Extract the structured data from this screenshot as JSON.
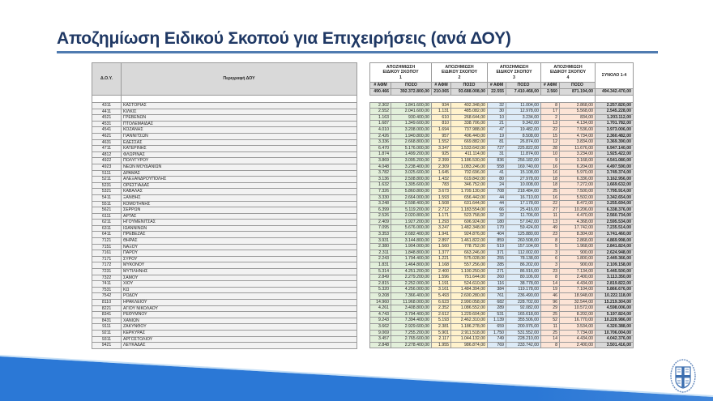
{
  "title": "Αποζημίωση Ειδικού Σκοπού για Επιχειρήσεις (ανά ΔΟΥ)",
  "left_headers": {
    "code": "Δ.Ο.Υ.",
    "name": "Περιγραφή ΔΟΥ"
  },
  "groups": [
    {
      "line1": "ΑΠΟΖΗΜΙΩΣΗ",
      "line2": "ΕΙΔΙΚΟΥ ΣΚΟΠΟΥ",
      "num": "1"
    },
    {
      "line1": "ΑΠΟΖΗΜΙΩΣΗ",
      "line2": "ΕΙΔΙΚΟΥ ΣΚΟΠΟΥ",
      "num": "2"
    },
    {
      "line1": "ΑΠΟΖΗΜΙΩΣΗ",
      "line2": "ΕΙΔΙΚΟΥ ΣΚΟΠΟΥ",
      "num": "3"
    },
    {
      "line1": "ΑΠΟΖΗΜΙΩΣΗ",
      "line2": "ΕΙΔΙΚΟΥ ΣΚΟΠΟΥ",
      "num": "4"
    }
  ],
  "sum_header": "ΣΥΝΟΛΟ 1-4",
  "sub_headers": {
    "afm": "# ΑΦΜ",
    "poso": "ΠΟΣΟ"
  },
  "totals": {
    "afm1": "490.466",
    "poso1": "392.372.800,00",
    "afm2": "210.065",
    "poso2": "93.688.008,00",
    "afm3": "22.555",
    "poso3": "7.410.468,00",
    "afm4": "2.560",
    "poso4": "871.194,00",
    "sum": "494.342.470,00"
  },
  "rows": [
    {
      "code": "4311",
      "name": "ΚΑΣΤΟΡΙΑΣ",
      "a1": "2.302",
      "p1": "1.841.600,00",
      "a2": "934",
      "p2": "402.348,00",
      "a3": "32",
      "p3": "11.004,00",
      "a4": "8",
      "p4": "2.868,00",
      "sum": "2.257.820,00"
    },
    {
      "code": "4411",
      "name": "ΚΙΛΚΙΣ",
      "a1": "2.552",
      "p1": "2.041.600,00",
      "a2": "1.131",
      "p2": "485.082,00",
      "a3": "30",
      "p3": "12.978,00",
      "a4": "17",
      "p4": "5.568,00",
      "sum": "2.545.228,00"
    },
    {
      "code": "4521",
      "name": "ΓΡΕΒΕΝΩΝ",
      "a1": "1.163",
      "p1": "930.400,00",
      "a2": "610",
      "p2": "268.644,00",
      "a3": "10",
      "p3": "3.234,00",
      "a4": "2",
      "p4": "834,00",
      "sum": "1.203.112,00"
    },
    {
      "code": "4531",
      "name": "ΠΤΟΛΕΜΑΙΔΑΣ",
      "a1": "1.687",
      "p1": "1.349.600,00",
      "a2": "810",
      "p2": "338.706,00",
      "a3": "21",
      "p3": "9.342,00",
      "a4": "13",
      "p4": "4.134,00",
      "sum": "1.701.782,00"
    },
    {
      "code": "4541",
      "name": "ΚΟΖΑΝΗΣ",
      "a1": "4.010",
      "p1": "3.208.000,00",
      "a2": "1.694",
      "p2": "737.988,00",
      "a3": "47",
      "p3": "19.482,00",
      "a4": "22",
      "p4": "7.536,00",
      "sum": "3.973.006,00"
    },
    {
      "code": "4621",
      "name": "ΓΙΑΝΝΙΤΣΩΝ",
      "a1": "2.426",
      "p1": "1.940.800,00",
      "a2": "957",
      "p2": "406.440,00",
      "a3": "19",
      "p3": "8.508,00",
      "a4": "15",
      "p4": "4.734,00",
      "sum": "2.360.482,00"
    },
    {
      "code": "4631",
      "name": "ΕΔΕΣΣΑΣ",
      "a1": "3.336",
      "p1": "2.668.800,00",
      "a2": "1.552",
      "p2": "669.882,00",
      "a3": "81",
      "p3": "26.874,00",
      "a4": "12",
      "p4": "3.834,00",
      "sum": "3.369.390,00"
    },
    {
      "code": "4711",
      "name": "ΚΑΤΕΡΙΝΗΣ",
      "a1": "6.470",
      "p1": "5.176.000,00",
      "a2": "3.347",
      "p2": "1.533.642,00",
      "a3": "727",
      "p3": "225.822,00",
      "a4": "28",
      "p4": "11.676,00",
      "sum": "6.947.140,00"
    },
    {
      "code": "4812",
      "name": "ΦΛΩΡΙΝΑΣ",
      "a1": "1.874",
      "p1": "1.499.200,00",
      "a2": "925",
      "p2": "411.114,00",
      "a3": "31",
      "p3": "11.874,00",
      "a4": "10",
      "p4": "3.234,00",
      "sum": "1.925.422,00"
    },
    {
      "code": "4922",
      "name": "ΠΟΛΥΓΥΡΟΥ",
      "a1": "3.869",
      "p1": "3.095.200,00",
      "a2": "2.399",
      "p2": "1.186.530,00",
      "a3": "836",
      "p3": "256.182,00",
      "a4": "9",
      "p4": "3.168,00",
      "sum": "4.541.080,00"
    },
    {
      "code": "4923",
      "name": "ΝΕΩΝ ΜΟΥΔΑΝΙΩΝ",
      "a1": "4.048",
      "p1": "3.238.400,00",
      "a2": "2.309",
      "p2": "1.083.246,00",
      "a3": "558",
      "p3": "169.740,00",
      "a4": "16",
      "p4": "6.204,00",
      "sum": "4.497.590,00"
    },
    {
      "code": "5111",
      "name": "ΔΡΑΜΑΣ",
      "a1": "3.782",
      "p1": "3.025.600,00",
      "a2": "1.645",
      "p2": "702.696,00",
      "a3": "41",
      "p3": "15.108,00",
      "a4": "16",
      "p4": "5.970,00",
      "sum": "3.749.374,00"
    },
    {
      "code": "5211",
      "name": "ΑΛΕΞΑΝΔΡΟΥΠΟΛΗΣ",
      "a1": "3.136",
      "p1": "2.508.800,00",
      "a2": "1.432",
      "p2": "619.842,00",
      "a3": "80",
      "p3": "27.978,00",
      "a4": "18",
      "p4": "6.336,00",
      "sum": "3.162.956,00"
    },
    {
      "code": "5231",
      "name": "ΟΡΕΣΤΙΑΔΑΣ",
      "a1": "1.632",
      "p1": "1.305.600,00",
      "a2": "783",
      "p2": "346.752,00",
      "a3": "24",
      "p3": "10.008,00",
      "a4": "18",
      "p4": "7.272,00",
      "sum": "1.669.632,00"
    },
    {
      "code": "5321",
      "name": "ΚΑΒΑΛΑΣ",
      "a1": "7.326",
      "p1": "5.860.800,00",
      "a2": "3.673",
      "p2": "1.709.130,00",
      "a3": "708",
      "p3": "218.484,00",
      "a4": "25",
      "p4": "7.500,00",
      "sum": "7.795.914,00"
    },
    {
      "code": "5411",
      "name": "ΞΑΝΘΗΣ",
      "a1": "3.330",
      "p1": "2.664.000,00",
      "a2": "1.593",
      "p2": "656.442,00",
      "a3": "44",
      "p3": "16.710,00",
      "a4": "16",
      "p4": "5.502,00",
      "sum": "3.342.654,00"
    },
    {
      "code": "5511",
      "name": "ΚΟΜΟΤΗΝΗΣ",
      "a1": "3.248",
      "p1": "2.598.400,00",
      "a2": "1.508",
      "p2": "631.644,00",
      "a3": "44",
      "p3": "17.178,00",
      "a4": "22",
      "p4": "8.472,00",
      "sum": "3.255.694,00"
    },
    {
      "code": "5621",
      "name": "ΣΕΡΡΩΝ",
      "a1": "6.399",
      "p1": "5.119.200,00",
      "a2": "2.712",
      "p2": "1.183.554,00",
      "a3": "66",
      "p3": "25.416,00",
      "a4": "27",
      "p4": "10.206,00",
      "sum": "6.338.376,00"
    },
    {
      "code": "6111",
      "name": "ΑΡΤΑΣ",
      "a1": "2.526",
      "p1": "2.020.800,00",
      "a2": "1.171",
      "p2": "523.758,00",
      "a3": "32",
      "p3": "11.706,00",
      "a4": "11",
      "p4": "4.470,00",
      "sum": "2.560.734,00"
    },
    {
      "code": "6211",
      "name": "ΗΓΟΥΜΕΝΙΤΣΑΣ",
      "a1": "2.409",
      "p1": "1.927.200,00",
      "a2": "1.293",
      "p2": "606.924,00",
      "a3": "180",
      "p3": "57.042,00",
      "a4": "13",
      "p4": "4.368,00",
      "sum": "2.595.534,00"
    },
    {
      "code": "6311",
      "name": "ΙΩΑΝΝΙΝΩΝ",
      "a1": "7.095",
      "p1": "5.676.000,00",
      "a2": "3.247",
      "p2": "1.482.348,00",
      "a3": "170",
      "p3": "59.424,00",
      "a4": "49",
      "p4": "17.742,00",
      "sum": "7.235.514,00"
    },
    {
      "code": "6411",
      "name": "ΠΡΕΒΕΖΑΣ",
      "a1": "3.353",
      "p1": "2.682.400,00",
      "a2": "1.941",
      "p2": "924.876,00",
      "a3": "404",
      "p3": "125.880,00",
      "a4": "23",
      "p4": "8.304,00",
      "sum": "3.741.460,00"
    },
    {
      "code": "7121",
      "name": "ΘΗΡΑΣ",
      "a1": "3.931",
      "p1": "3.144.800,00",
      "a2": "2.897",
      "p2": "1.461.822,00",
      "a3": "859",
      "p3": "260.508,00",
      "a4": "8",
      "p4": "2.868,00",
      "sum": "4.869.998,00"
    },
    {
      "code": "7151",
      "name": "ΝΑΞΟΥ",
      "a1": "2.380",
      "p1": "1.904.000,00",
      "a2": "1.560",
      "p2": "778.752,00",
      "a3": "519",
      "p3": "157.104,00",
      "a4": "5",
      "p4": "1.968,00",
      "sum": "2.841.824,00"
    },
    {
      "code": "7161",
      "name": "ΠΑΡΟΥ",
      "a1": "2.311",
      "p1": "1.848.800,00",
      "a2": "1.377",
      "p2": "663.246,00",
      "a3": "371",
      "p3": "112.002,00",
      "a4": "3",
      "p4": "900,00",
      "sum": "2.624.948,00"
    },
    {
      "code": "7171",
      "name": "ΣΥΡΟΥ",
      "a1": "2.243",
      "p1": "1.794.400,00",
      "a2": "1.221",
      "p2": "575.028,00",
      "a3": "255",
      "p3": "78.138,00",
      "a4": "6",
      "p4": "1.800,00",
      "sum": "2.449.366,00"
    },
    {
      "code": "7172",
      "name": "ΜΥΚΟΝΟΥ",
      "a1": "1.831",
      "p1": "1.464.800,00",
      "a2": "1.168",
      "p2": "557.256,00",
      "a3": "285",
      "p3": "86.202,00",
      "a4": "3",
      "p4": "900,00",
      "sum": "2.109.158,00"
    },
    {
      "code": "7231",
      "name": "ΜΥΤΙΛΗΝΗΣ",
      "a1": "5.314",
      "p1": "4.251.200,00",
      "a2": "2.400",
      "p2": "1.100.250,00",
      "a3": "271",
      "p3": "86.916,00",
      "a4": "23",
      "p4": "7.134,00",
      "sum": "5.445.500,00"
    },
    {
      "code": "7322",
      "name": "ΣΑΜΟΥ",
      "a1": "2.849",
      "p1": "2.279.200,00",
      "a2": "1.596",
      "p2": "751.644,00",
      "a3": "260",
      "p3": "80.106,00",
      "a4": "8",
      "p4": "2.400,00",
      "sum": "3.113.350,00"
    },
    {
      "code": "7411",
      "name": "ΧΙΟΥ",
      "a1": "2.815",
      "p1": "2.252.000,00",
      "a2": "1.191",
      "p2": "524.610,00",
      "a3": "116",
      "p3": "38.778,00",
      "a4": "14",
      "p4": "4.434,00",
      "sum": "2.819.822,00"
    },
    {
      "code": "7531",
      "name": "ΚΩ",
      "a1": "5.320",
      "p1": "4.256.000,00",
      "a2": "3.161",
      "p2": "1.484.394,00",
      "a3": "384",
      "p3": "119.178,00",
      "a4": "19",
      "p4": "7.104,00",
      "sum": "5.866.676,00"
    },
    {
      "code": "7542",
      "name": "ΡΟΔΟΥ",
      "a1": "9.208",
      "p1": "7.366.400,00",
      "a2": "5.493",
      "p2": "2.600.280,00",
      "a3": "761",
      "p3": "236.490,00",
      "a4": "46",
      "p4": "18.948,00",
      "sum": "10.222.118,00"
    },
    {
      "code": "8110",
      "name": "ΗΡΑΚΛΕΙΟΥ",
      "a1": "14.960",
      "p1": "11.968.000,00",
      "a2": "6.623",
      "p2": "2.990.058,00",
      "a3": "682",
      "p3": "228.702,00",
      "a4": "96",
      "p4": "32.544,00",
      "sum": "15.219.304,00"
    },
    {
      "code": "8221",
      "name": "ΑΓΙΟΥ ΝΙΚΟΛΑΟΥ",
      "a1": "4.261",
      "p1": "3.408.800,00",
      "a2": "2.352",
      "p2": "1.086.552,00",
      "a3": "289",
      "p3": "92.082,00",
      "a4": "29",
      "p4": "10.572,00",
      "sum": "4.598.006,00"
    },
    {
      "code": "8341",
      "name": "ΡΕΘΥΜΝΟΥ",
      "a1": "4.743",
      "p1": "3.794.400,00",
      "a2": "2.612",
      "p2": "1.229.604,00",
      "a3": "531",
      "p3": "165.618,00",
      "a4": "25",
      "p4": "8.202,00",
      "sum": "5.197.824,00"
    },
    {
      "code": "8431",
      "name": "ΧΑΝΙΩΝ",
      "a1": "9.243",
      "p1": "7.394.400,00",
      "a2": "5.193",
      "p2": "2.462.310,00",
      "a3": "1.139",
      "p3": "355.506,00",
      "a4": "52",
      "p4": "16.770,00",
      "sum": "10.228.986,00"
    },
    {
      "code": "9111",
      "name": "ΖΑΚΥΝΘΟΥ",
      "a1": "3.662",
      "p1": "2.929.600,00",
      "a2": "2.381",
      "p2": "1.186.278,00",
      "a3": "659",
      "p3": "200.976,00",
      "a4": "11",
      "p4": "3.534,00",
      "sum": "4.320.388,00"
    },
    {
      "code": "9211",
      "name": "ΚΕΡΚΥΡΑΣ",
      "a1": "9.069",
      "p1": "7.255.200,00",
      "a2": "5.901",
      "p2": "2.911.518,00",
      "a3": "1.750",
      "p3": "531.552,00",
      "a4": "25",
      "p4": "7.734,00",
      "sum": "10.706.004,00"
    },
    {
      "code": "9311",
      "name": "ΑΡΓΟΣΤΟΛΙΟΥ",
      "a1": "3.457",
      "p1": "2.765.600,00",
      "a2": "2.117",
      "p2": "1.044.132,00",
      "a3": "749",
      "p3": "228.210,00",
      "a4": "14",
      "p4": "4.434,00",
      "sum": "4.042.376,00"
    },
    {
      "code": "9421",
      "name": "ΛΕΥΚΑΔΑΣ",
      "a1": "2.848",
      "p1": "2.278.400,00",
      "a2": "1.955",
      "p2": "986.874,00",
      "a3": "769",
      "p3": "233.742,00",
      "a4": "8",
      "p4": "2.400,00",
      "sum": "3.501.416,00"
    }
  ],
  "colors": {
    "title": "#1f3864",
    "rule": "#4f7bb0",
    "group1": "#e2efda",
    "group2": "#fff2cc",
    "group3": "#ddebf7",
    "group4": "#fce4d6",
    "sum": "#d9d9d9",
    "wedge": "#2b78d6"
  },
  "icons": {
    "emblem": "greek-coat-of-arms-icon"
  }
}
